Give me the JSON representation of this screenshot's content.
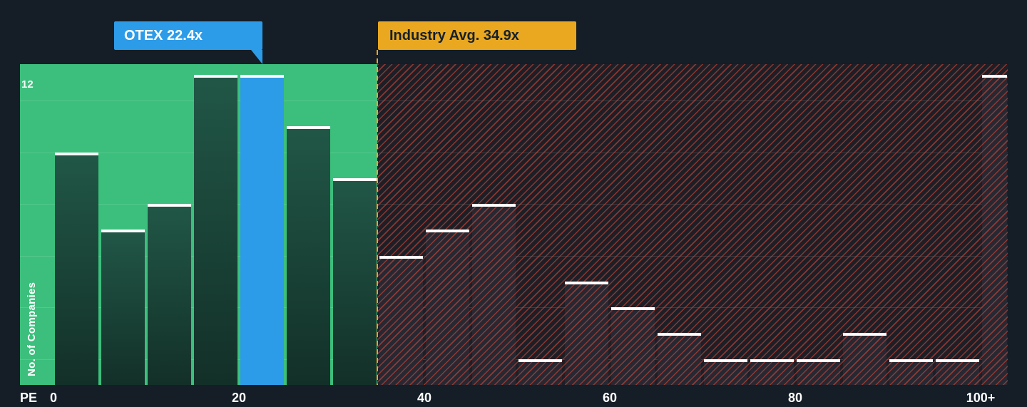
{
  "chart_data": {
    "type": "bar",
    "subtype": "histogram",
    "xlabel": "PE",
    "ylabel": "No. of Companies",
    "ylim": [
      0,
      12
    ],
    "y_tick_top": "12",
    "grid": "horizontal-faint",
    "legend": "none",
    "x_ticks": [
      {
        "value": 0,
        "label": "0"
      },
      {
        "value": 20,
        "label": "20"
      },
      {
        "value": 40,
        "label": "40"
      },
      {
        "value": 60,
        "label": "60"
      },
      {
        "value": 80,
        "label": "80"
      },
      {
        "value": 100,
        "label": "100+"
      }
    ],
    "bins": [
      {
        "from": 0,
        "to": 5,
        "count": 9
      },
      {
        "from": 5,
        "to": 10,
        "count": 6
      },
      {
        "from": 10,
        "to": 15,
        "count": 7
      },
      {
        "from": 15,
        "to": 20,
        "count": 12
      },
      {
        "from": 20,
        "to": 25,
        "count": 12
      },
      {
        "from": 25,
        "to": 30,
        "count": 10
      },
      {
        "from": 30,
        "to": 35,
        "count": 8
      },
      {
        "from": 35,
        "to": 40,
        "count": 5
      },
      {
        "from": 40,
        "to": 45,
        "count": 6
      },
      {
        "from": 45,
        "to": 50,
        "count": 7
      },
      {
        "from": 50,
        "to": 55,
        "count": 1
      },
      {
        "from": 55,
        "to": 60,
        "count": 4
      },
      {
        "from": 60,
        "to": 65,
        "count": 3
      },
      {
        "from": 65,
        "to": 70,
        "count": 2
      },
      {
        "from": 70,
        "to": 75,
        "count": 1
      },
      {
        "from": 75,
        "to": 80,
        "count": 1
      },
      {
        "from": 80,
        "to": 85,
        "count": 1
      },
      {
        "from": 85,
        "to": 90,
        "count": 2
      },
      {
        "from": 90,
        "to": 95,
        "count": 1
      },
      {
        "from": 95,
        "to": 100,
        "count": 1
      },
      {
        "from": 100,
        "to": 103,
        "count": 12,
        "label": "100+"
      }
    ],
    "highlight": {
      "name": "OTEX",
      "pe": 22.4,
      "label": "OTEX 22.4x",
      "bin_index": 4
    },
    "industry_avg": {
      "pe": 34.9,
      "label": "Industry Avg. 34.9x"
    },
    "zones": [
      {
        "name": "below-industry-average",
        "range": [
          0,
          34.9
        ],
        "style": "green-fill"
      },
      {
        "name": "above-industry-average",
        "range": [
          34.9,
          103
        ],
        "style": "red-hatch"
      }
    ],
    "colors": {
      "background": "#151d26",
      "zone_green": "#3cbf7c",
      "highlight_blue": "#2d9ce8",
      "industry_amber": "#e9a81f",
      "hatch_red": "#e04a3a",
      "bar_cap_white": "#ffffff"
    }
  }
}
